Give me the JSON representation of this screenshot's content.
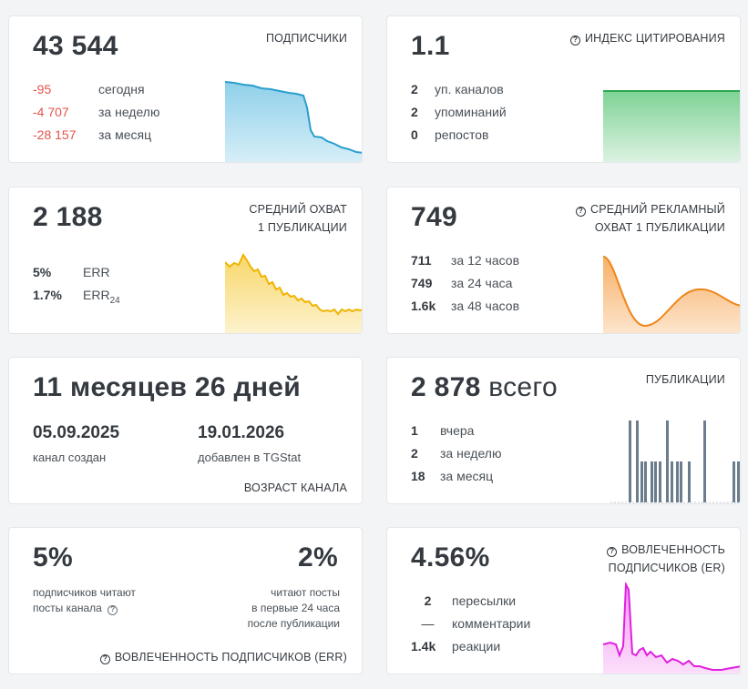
{
  "subscribers": {
    "value": "43 544",
    "label": "ПОДПИСЧИКИ",
    "rows": [
      {
        "value": "-95",
        "text": "сегодня"
      },
      {
        "value": "-4 707",
        "text": "за неделю"
      },
      {
        "value": "-28 157",
        "text": "за месяц"
      }
    ],
    "color": "#3aa9d6"
  },
  "citation": {
    "value": "1.1",
    "label": "ИНДЕКС ЦИТИРОВАНИЯ",
    "icon": "question-circle-icon",
    "rows": [
      {
        "value": "2",
        "text": "уп. каналов"
      },
      {
        "value": "2",
        "text": "упоминаний"
      },
      {
        "value": "0",
        "text": "репостов"
      }
    ],
    "color": "#33b35a"
  },
  "reach": {
    "value": "2 188",
    "label_line1": "СРЕДНИЙ ОХВАТ",
    "label_line2": "1 ПУБЛИКАЦИИ",
    "rows": [
      {
        "value": "5%",
        "text": "ERR"
      },
      {
        "value": "1.7%",
        "text": "ERR",
        "sub": "24"
      }
    ],
    "color": "#f4c02a"
  },
  "ad_reach": {
    "value": "749",
    "label_line1": "СРЕДНИЙ РЕКЛАМНЫЙ",
    "label_line2": "ОХВАТ 1 ПУБЛИКАЦИИ",
    "icon": "question-circle-icon",
    "rows": [
      {
        "value": "711",
        "text": "за 12 часов"
      },
      {
        "value": "749",
        "text": "за 24 часа"
      },
      {
        "value": "1.6k",
        "text": "за 48 часов"
      }
    ],
    "color": "#f08a24"
  },
  "age": {
    "value": "11 месяцев 26 дней",
    "created_date": "05.09.2025",
    "created_label": "канал создан",
    "added_date": "19.01.2026",
    "added_label": "добавлен в TGStat",
    "label": "ВОЗРАСТ КАНАЛА"
  },
  "posts": {
    "value": "2 878",
    "suffix": "всего",
    "label": "ПУБЛИКАЦИИ",
    "rows": [
      {
        "value": "1",
        "text": "вчера"
      },
      {
        "value": "2",
        "text": "за неделю"
      },
      {
        "value": "18",
        "text": "за месяц"
      }
    ],
    "color": "#6b7c8c"
  },
  "err": {
    "left_value": "5%",
    "left_text_line1": "подписчиков читают",
    "left_text_line2": "посты канала",
    "right_value": "2%",
    "right_text_line1": "читают посты",
    "right_text_line2": "в первые 24 часа",
    "right_text_line3": "после публикации",
    "label": "ВОВЛЕЧЕННОСТЬ ПОДПИСЧИКОВ (ERR)",
    "icon": "question-circle-icon"
  },
  "er": {
    "value": "4.56%",
    "label_line1": "ВОВЛЕЧЕННОСТЬ",
    "label_line2": "ПОДПИСЧИКОВ (ER)",
    "icon": "question-circle-icon",
    "rows": [
      {
        "value": "2",
        "text": "пересылки"
      },
      {
        "value": "—",
        "text": "комментарии"
      },
      {
        "value": "1.4k",
        "text": "реакции"
      }
    ],
    "color": "#e020e0"
  }
}
